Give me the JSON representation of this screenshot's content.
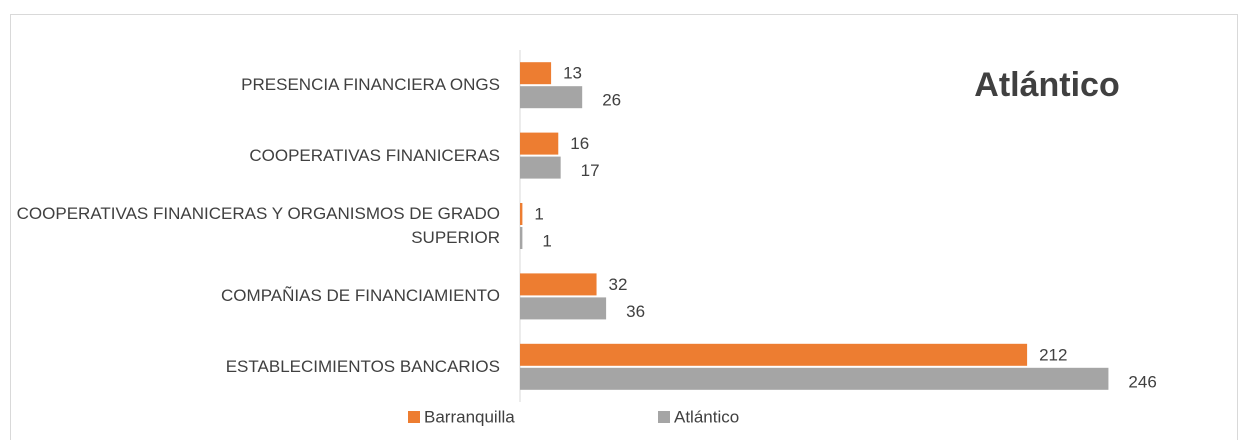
{
  "chart_data": {
    "type": "barh",
    "title": "Atlántico",
    "categories": [
      "PRESENCIA FINANCIERA ONGS",
      "COOPERATIVAS FINANICERAS",
      "COOPERATIVAS FINANICERAS Y ORGANISMOS DE GRADO SUPERIOR",
      "COMPAÑIAS DE FINANCIAMIENTO",
      "ESTABLECIMIENTOS BANCARIOS"
    ],
    "series": [
      {
        "name": "Barranquilla",
        "color": "#ed7d31",
        "values": [
          13,
          16,
          1,
          32,
          212
        ]
      },
      {
        "name": "Atlántico",
        "color": "#a5a5a5",
        "values": [
          26,
          17,
          1,
          36,
          246
        ]
      }
    ],
    "xlim": [
      0,
      250
    ],
    "legend": "bottom"
  }
}
